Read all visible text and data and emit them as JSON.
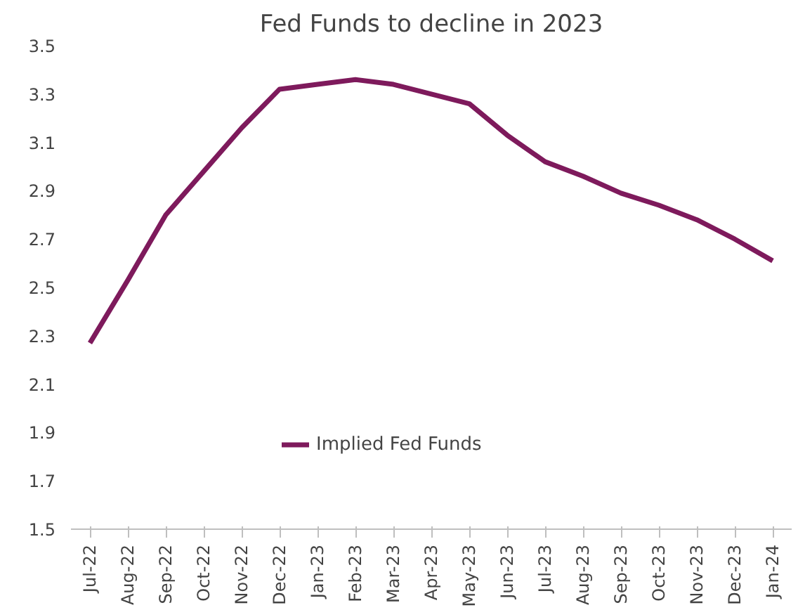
{
  "chart_data": {
    "type": "line",
    "title": "Fed Funds to decline in 2023",
    "categories": [
      "Jul-22",
      "Aug-22",
      "Sep-22",
      "Oct-22",
      "Nov-22",
      "Dec-22",
      "Jan-23",
      "Feb-23",
      "Mar-23",
      "Apr-23",
      "May-23",
      "Jun-23",
      "Jul-23",
      "Aug-23",
      "Sep-23",
      "Oct-23",
      "Nov-23",
      "Dec-23",
      "Jan-24"
    ],
    "series": [
      {
        "name": "Implied Fed Funds",
        "color": "#7e1a5c",
        "values": [
          2.27,
          2.53,
          2.8,
          2.98,
          3.16,
          3.32,
          3.34,
          3.36,
          3.34,
          3.3,
          3.26,
          3.13,
          3.02,
          2.96,
          2.89,
          2.84,
          2.78,
          2.7,
          2.61
        ]
      }
    ],
    "ylim": [
      1.5,
      3.5
    ],
    "yticks": [
      1.5,
      1.7,
      1.9,
      2.1,
      2.3,
      2.5,
      2.7,
      2.9,
      3.1,
      3.3,
      3.5
    ],
    "grid": false,
    "legend": "bottom",
    "marker": "none",
    "line_style": "solid"
  }
}
